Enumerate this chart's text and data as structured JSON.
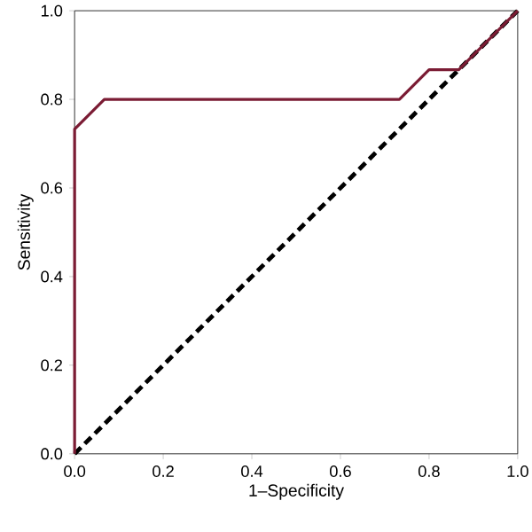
{
  "chart_data": {
    "type": "line",
    "xlabel": "1–Specificity",
    "ylabel": "Sensitivity",
    "xlim": [
      0,
      1
    ],
    "ylim": [
      0,
      1
    ],
    "xticks": [
      {
        "value": 0,
        "label": "0.0"
      },
      {
        "value": 0.2,
        "label": "0.2"
      },
      {
        "value": 0.4,
        "label": "0.4"
      },
      {
        "value": 0.6,
        "label": "0.6"
      },
      {
        "value": 0.8,
        "label": "0.8"
      },
      {
        "value": 1,
        "label": "1.0"
      }
    ],
    "yticks": [
      {
        "value": 0,
        "label": "0.0"
      },
      {
        "value": 0.2,
        "label": "0.2"
      },
      {
        "value": 0.4,
        "label": "0.4"
      },
      {
        "value": 0.6,
        "label": "0.6"
      },
      {
        "value": 0.8,
        "label": "0.8"
      },
      {
        "value": 1,
        "label": "1.0"
      }
    ],
    "grid": false,
    "series": [
      {
        "color": "#000000",
        "line_style": "dashed",
        "x": [
          0,
          1
        ],
        "values": [
          0,
          1
        ]
      },
      {
        "color": "#7b1c34",
        "line_style": "solid",
        "x": [
          0,
          0,
          0.067,
          0.733,
          0.8,
          0.867,
          1
        ],
        "values": [
          0,
          0.733,
          0.8,
          0.8,
          0.867,
          0.867,
          1
        ]
      }
    ]
  }
}
